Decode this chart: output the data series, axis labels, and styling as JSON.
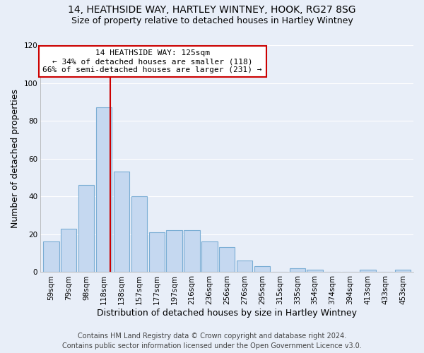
{
  "title": "14, HEATHSIDE WAY, HARTLEY WINTNEY, HOOK, RG27 8SG",
  "subtitle": "Size of property relative to detached houses in Hartley Wintney",
  "xlabel": "Distribution of detached houses by size in Hartley Wintney",
  "ylabel": "Number of detached properties",
  "bar_labels": [
    "59sqm",
    "79sqm",
    "98sqm",
    "118sqm",
    "138sqm",
    "157sqm",
    "177sqm",
    "197sqm",
    "216sqm",
    "236sqm",
    "256sqm",
    "276sqm",
    "295sqm",
    "315sqm",
    "335sqm",
    "354sqm",
    "374sqm",
    "394sqm",
    "413sqm",
    "433sqm",
    "453sqm"
  ],
  "bar_values": [
    16,
    23,
    46,
    87,
    53,
    40,
    21,
    22,
    22,
    16,
    13,
    6,
    3,
    0,
    2,
    1,
    0,
    0,
    1,
    0,
    1
  ],
  "bar_color": "#c5d8f0",
  "bar_edgecolor": "#7aadd4",
  "annotation_line_color": "#cc0000",
  "annotation_box_text": "14 HEATHSIDE WAY: 125sqm\n← 34% of detached houses are smaller (118)\n66% of semi-detached houses are larger (231) →",
  "annotation_box_color": "white",
  "annotation_box_edgecolor": "#cc0000",
  "ylim": [
    0,
    120
  ],
  "yticks": [
    0,
    20,
    40,
    60,
    80,
    100,
    120
  ],
  "footer_line1": "Contains HM Land Registry data © Crown copyright and database right 2024.",
  "footer_line2": "Contains public sector information licensed under the Open Government Licence v3.0.",
  "background_color": "#e8eef8",
  "plot_bg_color": "#e8eef8",
  "grid_color": "#ffffff",
  "title_fontsize": 10,
  "subtitle_fontsize": 9,
  "axis_label_fontsize": 9,
  "tick_fontsize": 7.5,
  "annotation_fontsize": 8,
  "footer_fontsize": 7
}
